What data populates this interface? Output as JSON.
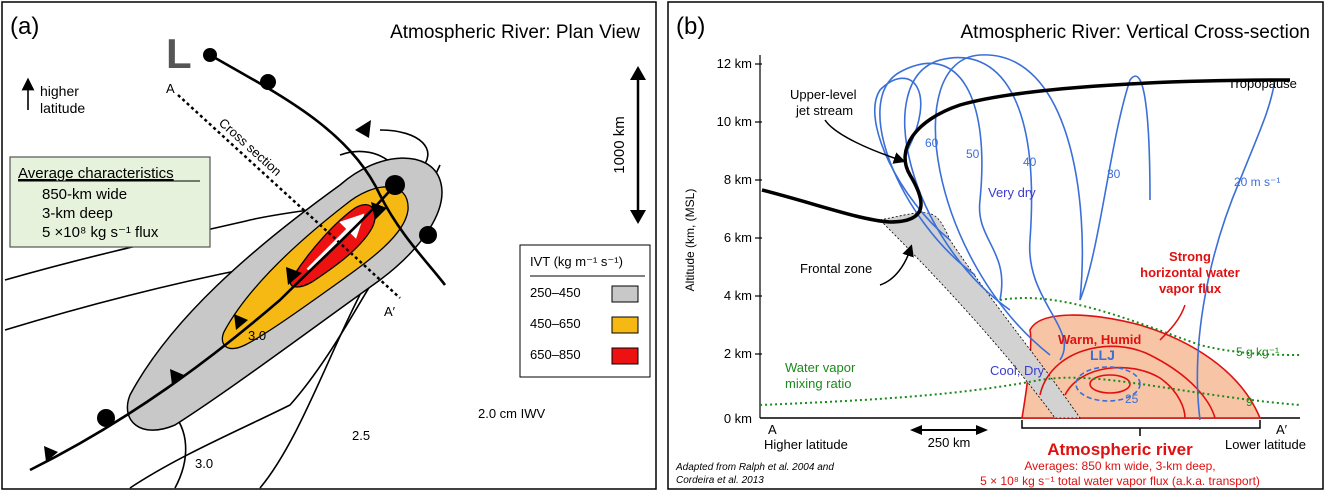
{
  "panel_a": {
    "label": "(a)",
    "title": "Atmospheric River: Plan View",
    "low_symbol": "L",
    "north_label_1": "higher",
    "north_label_2": "latitude",
    "point_a": "A",
    "point_a_prime": "A′",
    "cross_section": "Cross section",
    "scale": "1000 km",
    "characteristics": {
      "heading": "Average characteristics",
      "lines": [
        "850-km wide",
        "3-km deep",
        "5 ×10⁸ kg s⁻¹ flux"
      ]
    },
    "contours": {
      "c1": "3.0",
      "c2": "2.0 cm IWV",
      "c3": "2.5",
      "c4": "3.0"
    },
    "legend": {
      "title": "IVT (kg m⁻¹ s⁻¹)",
      "items": [
        {
          "label": "250–450",
          "color": "#c8c8c8"
        },
        {
          "label": "450–650",
          "color": "#f6b914"
        },
        {
          "label": "650–850",
          "color": "#ee1111"
        }
      ]
    }
  },
  "panel_b": {
    "label": "(b)",
    "title": "Atmospheric River: Vertical Cross-section",
    "ylabel": "Altitude (km, (MSL)",
    "yticks": [
      "12 km",
      "10 km",
      "8 km",
      "6 km",
      "4 km",
      "2 km",
      "0 km"
    ],
    "left_a": "A",
    "right_a": "A′",
    "higher_latitude": "Higher latitude",
    "lower_latitude": "Lower latitude",
    "scale": "250 km",
    "tropopause": "Tropopause",
    "jet_1": "Upper-level",
    "jet_2": "jet stream",
    "frontal_zone": "Frontal zone",
    "very_dry": "Very dry",
    "cool_dry": "Cool, Dry",
    "warm_humid": "Warm, Humid",
    "llj": "LLJ",
    "wv_1": "Water vapor",
    "wv_2": "mixing ratio",
    "flux_1": "Strong",
    "flux_2": "horizontal water",
    "flux_3": "vapor flux",
    "speeds": {
      "s60": "60",
      "s50": "50",
      "s40": "40",
      "s30": "30",
      "s20": "20 m s⁻¹",
      "s25": "25"
    },
    "mixing": {
      "m5": "5 g kg⁻¹",
      "m9": "9"
    },
    "ar_title": "Atmospheric river",
    "ar_line1": "Averages: 850 km wide, 3-km deep,",
    "ar_line2": "5 × 10⁸ kg s⁻¹ total water vapor flux (a.k.a. transport)",
    "credit_1": "Adapted from Ralph et al. 2004 and",
    "credit_2": "Cordeira et al. 2013"
  },
  "colors": {
    "blue": "#3b6fd8",
    "green": "#1a8a1a",
    "red": "#e01010",
    "orange_fill": "#f7c4a6",
    "box_fill": "#e7f2dc"
  }
}
